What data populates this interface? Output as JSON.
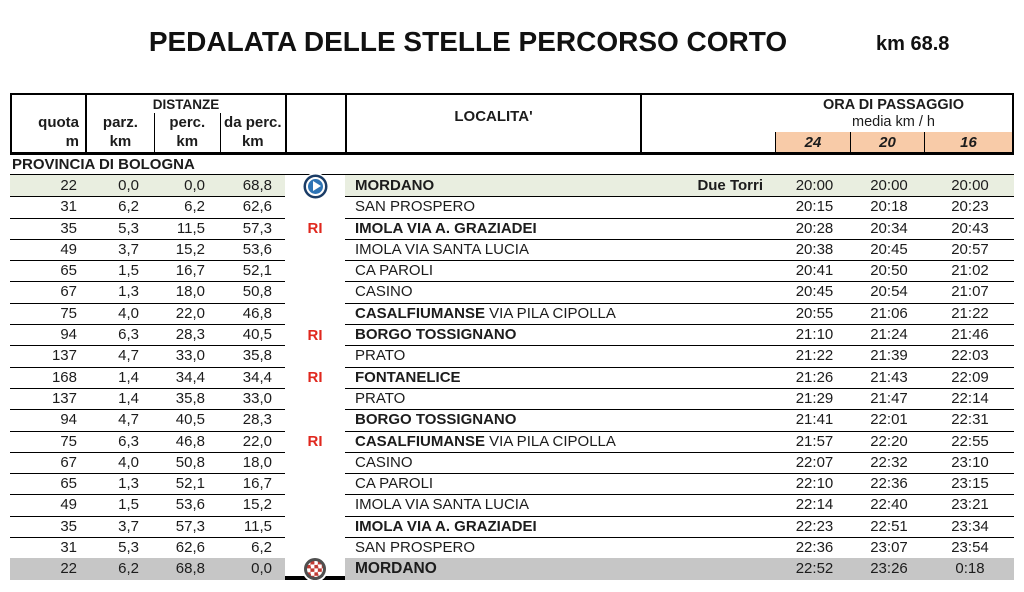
{
  "title": "PEDALATA DELLE STELLE PERCORSO CORTO",
  "total_distance": "km 68.8",
  "header": {
    "quota_label": "quota",
    "quota_unit": "m",
    "distanze_label": "DISTANZE",
    "dist_cols": [
      {
        "label": "parz.",
        "unit": "km"
      },
      {
        "label": "perc.",
        "unit": "km"
      },
      {
        "label": "da perc.",
        "unit": "km"
      }
    ],
    "localita_label": "LOCALITA'",
    "ora_label": "ORA DI PASSAGGIO",
    "media_label": "media km / h",
    "speeds": [
      "24",
      "20",
      "16"
    ]
  },
  "province_label": "PROVINCIA DI BOLOGNA",
  "markers_legend": {
    "start": "start-icon",
    "finish": "finish-icon",
    "RI": "refreshment-stop"
  },
  "rows": [
    {
      "quota": "22",
      "parz": "0,0",
      "perc": "0,0",
      "daperc": "68,8",
      "marker": "start",
      "name_bold": "MORDANO",
      "name_rest": "",
      "note": "Due Torri",
      "t24": "20:00",
      "t20": "20:00",
      "t16": "20:00",
      "style": "start"
    },
    {
      "quota": "31",
      "parz": "6,2",
      "perc": "6,2",
      "daperc": "62,6",
      "marker": "",
      "name_bold": "",
      "name_rest": "SAN PROSPERO",
      "note": "",
      "t24": "20:15",
      "t20": "20:18",
      "t16": "20:23",
      "style": ""
    },
    {
      "quota": "35",
      "parz": "5,3",
      "perc": "11,5",
      "daperc": "57,3",
      "marker": "RI",
      "name_bold": "IMOLA VIA A. GRAZIADEI",
      "name_rest": "",
      "note": "",
      "t24": "20:28",
      "t20": "20:34",
      "t16": "20:43",
      "style": ""
    },
    {
      "quota": "49",
      "parz": "3,7",
      "perc": "15,2",
      "daperc": "53,6",
      "marker": "",
      "name_bold": "",
      "name_rest": "IMOLA VIA SANTA LUCIA",
      "note": "",
      "t24": "20:38",
      "t20": "20:45",
      "t16": "20:57",
      "style": ""
    },
    {
      "quota": "65",
      "parz": "1,5",
      "perc": "16,7",
      "daperc": "52,1",
      "marker": "",
      "name_bold": "",
      "name_rest": "CA PAROLI",
      "note": "",
      "t24": "20:41",
      "t20": "20:50",
      "t16": "21:02",
      "style": ""
    },
    {
      "quota": "67",
      "parz": "1,3",
      "perc": "18,0",
      "daperc": "50,8",
      "marker": "",
      "name_bold": "",
      "name_rest": "CASINO",
      "note": "",
      "t24": "20:45",
      "t20": "20:54",
      "t16": "21:07",
      "style": ""
    },
    {
      "quota": "75",
      "parz": "4,0",
      "perc": "22,0",
      "daperc": "46,8",
      "marker": "",
      "name_bold": "CASALFIUMANSE",
      "name_rest": " VIA PILA CIPOLLA",
      "note": "",
      "t24": "20:55",
      "t20": "21:06",
      "t16": "21:22",
      "style": ""
    },
    {
      "quota": "94",
      "parz": "6,3",
      "perc": "28,3",
      "daperc": "40,5",
      "marker": "RI",
      "name_bold": "BORGO TOSSIGNANO",
      "name_rest": "",
      "note": "",
      "t24": "21:10",
      "t20": "21:24",
      "t16": "21:46",
      "style": ""
    },
    {
      "quota": "137",
      "parz": "4,7",
      "perc": "33,0",
      "daperc": "35,8",
      "marker": "",
      "name_bold": "",
      "name_rest": "PRATO",
      "note": "",
      "t24": "21:22",
      "t20": "21:39",
      "t16": "22:03",
      "style": ""
    },
    {
      "quota": "168",
      "parz": "1,4",
      "perc": "34,4",
      "daperc": "34,4",
      "marker": "RI",
      "name_bold": "FONTANELICE",
      "name_rest": "",
      "note": "",
      "t24": "21:26",
      "t20": "21:43",
      "t16": "22:09",
      "style": ""
    },
    {
      "quota": "137",
      "parz": "1,4",
      "perc": "35,8",
      "daperc": "33,0",
      "marker": "",
      "name_bold": "",
      "name_rest": "PRATO",
      "note": "",
      "t24": "21:29",
      "t20": "21:47",
      "t16": "22:14",
      "style": ""
    },
    {
      "quota": "94",
      "parz": "4,7",
      "perc": "40,5",
      "daperc": "28,3",
      "marker": "",
      "name_bold": "BORGO TOSSIGNANO",
      "name_rest": "",
      "note": "",
      "t24": "21:41",
      "t20": "22:01",
      "t16": "22:31",
      "style": ""
    },
    {
      "quota": "75",
      "parz": "6,3",
      "perc": "46,8",
      "daperc": "22,0",
      "marker": "RI",
      "name_bold": "CASALFIUMANSE",
      "name_rest": " VIA PILA CIPOLLA",
      "note": "",
      "t24": "21:57",
      "t20": "22:20",
      "t16": "22:55",
      "style": ""
    },
    {
      "quota": "67",
      "parz": "4,0",
      "perc": "50,8",
      "daperc": "18,0",
      "marker": "",
      "name_bold": "",
      "name_rest": "CASINO",
      "note": "",
      "t24": "22:07",
      "t20": "22:32",
      "t16": "23:10",
      "style": ""
    },
    {
      "quota": "65",
      "parz": "1,3",
      "perc": "52,1",
      "daperc": "16,7",
      "marker": "",
      "name_bold": "",
      "name_rest": "CA PAROLI",
      "note": "",
      "t24": "22:10",
      "t20": "22:36",
      "t16": "23:15",
      "style": ""
    },
    {
      "quota": "49",
      "parz": "1,5",
      "perc": "53,6",
      "daperc": "15,2",
      "marker": "",
      "name_bold": "",
      "name_rest": "IMOLA VIA SANTA LUCIA",
      "note": "",
      "t24": "22:14",
      "t20": "22:40",
      "t16": "23:21",
      "style": ""
    },
    {
      "quota": "35",
      "parz": "3,7",
      "perc": "57,3",
      "daperc": "11,5",
      "marker": "",
      "name_bold": "IMOLA VIA A. GRAZIADEI",
      "name_rest": "",
      "note": "",
      "t24": "22:23",
      "t20": "22:51",
      "t16": "23:34",
      "style": ""
    },
    {
      "quota": "31",
      "parz": "5,3",
      "perc": "62,6",
      "daperc": "6,2",
      "marker": "",
      "name_bold": "",
      "name_rest": "SAN PROSPERO",
      "note": "",
      "t24": "22:36",
      "t20": "23:07",
      "t16": "23:54",
      "style": ""
    },
    {
      "quota": "22",
      "parz": "6,2",
      "perc": "68,8",
      "daperc": "0,0",
      "marker": "finish",
      "name_bold": "MORDANO",
      "name_rest": "",
      "note": "",
      "t24": "22:52",
      "t20": "23:26",
      "t16": "0:18",
      "style": "finish"
    }
  ],
  "colors": {
    "speed_header_bg": "#f8cba8",
    "start_row_bg": "#e9eee0",
    "finish_row_bg": "#c6c6c6",
    "ri_red": "#e0281e",
    "start_icon_blue": "#2e74b5",
    "start_icon_ring": "#1a3c66",
    "finish_checker_red": "#c13a33"
  }
}
